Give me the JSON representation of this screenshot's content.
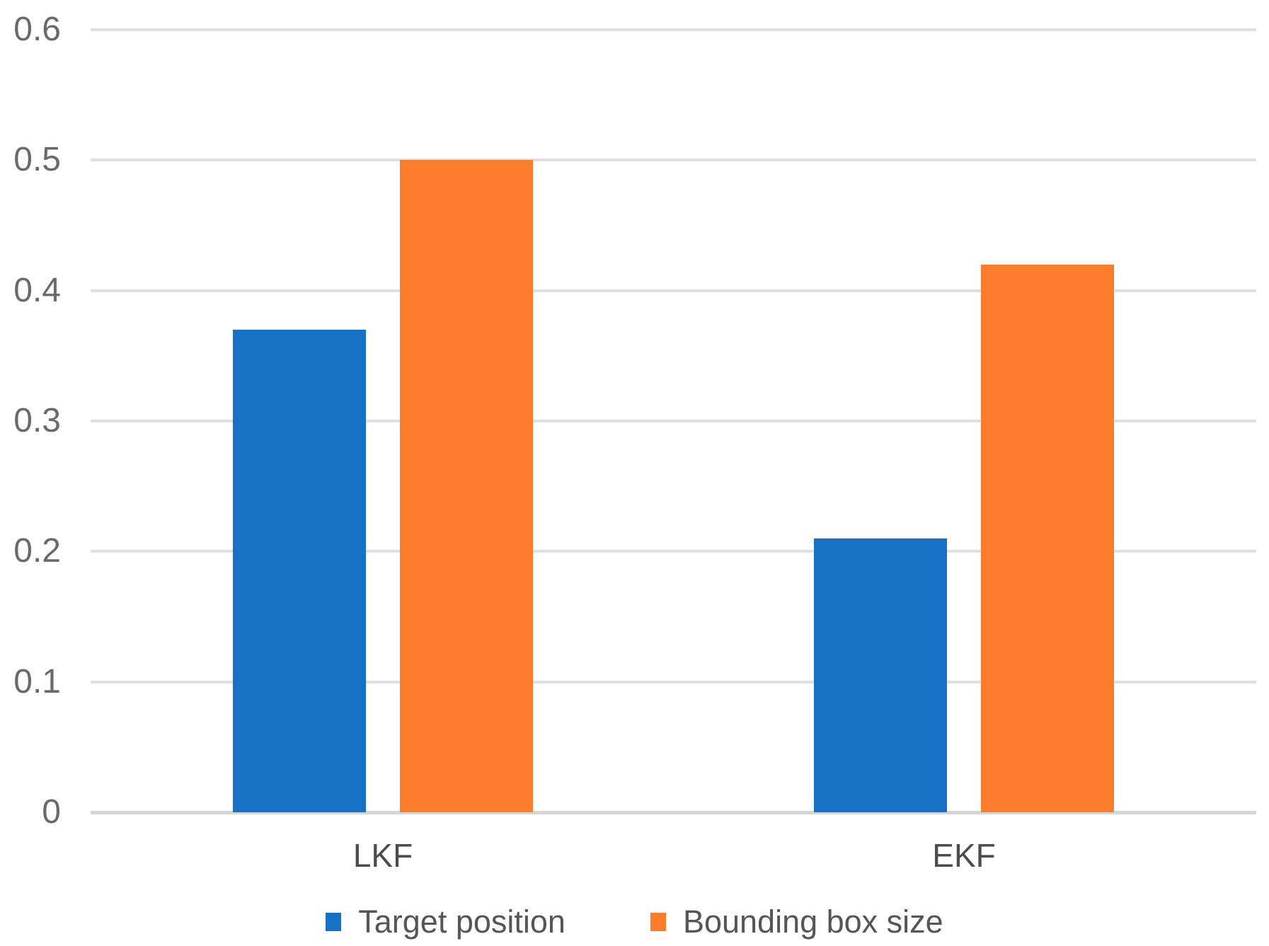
{
  "chart_data": {
    "type": "bar",
    "title": "",
    "xlabel": "",
    "ylabel": "",
    "categories": [
      "LKF",
      "EKF"
    ],
    "series": [
      {
        "name": "Target position",
        "color": "#1772C6",
        "values": [
          0.37,
          0.21
        ]
      },
      {
        "name": "Bounding box size",
        "color": "#FC7E2D",
        "values": [
          0.5,
          0.42
        ]
      }
    ],
    "ylim": [
      0,
      0.6
    ],
    "y_tick_labels": [
      "0",
      "0.1",
      "0.2",
      "0.3",
      "0.4",
      "0.5",
      "0.6"
    ],
    "grid": true,
    "legend_position": "bottom",
    "grid_color": "#e0e0e0",
    "axis_line_color": "#d6d6d6",
    "tick_text_color": "#6a6a6a",
    "category_text_color": "#4c4c4c",
    "legend_text_color": "#565656"
  }
}
